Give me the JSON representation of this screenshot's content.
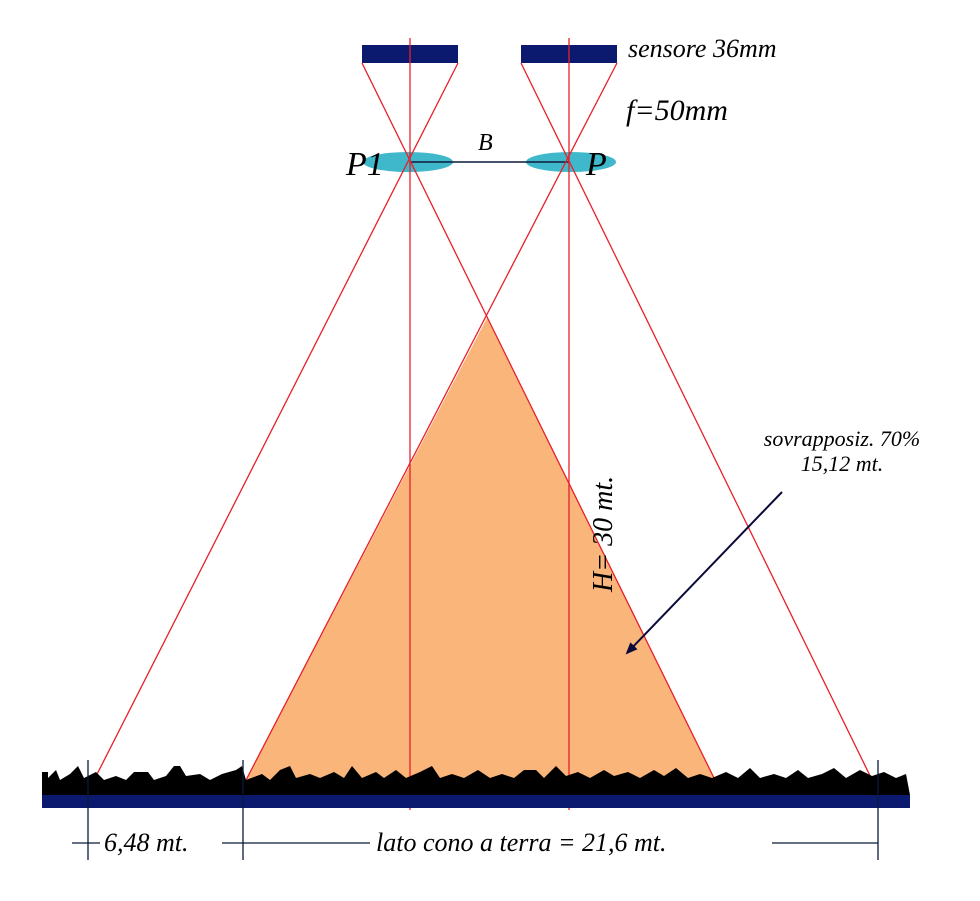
{
  "sensor_label": "sensore 36mm",
  "focal_label": "f=50mm",
  "left_point": "P1",
  "base_label": "B",
  "right_point": "P",
  "overlap": {
    "label": "sovrapposiz. 70%",
    "length": "15,12 mt."
  },
  "height_label": "H= 30 mt.",
  "dimensions": {
    "offset": "6,48 mt.",
    "ground_side": "lato cono a terra = 21,6 mt."
  }
}
